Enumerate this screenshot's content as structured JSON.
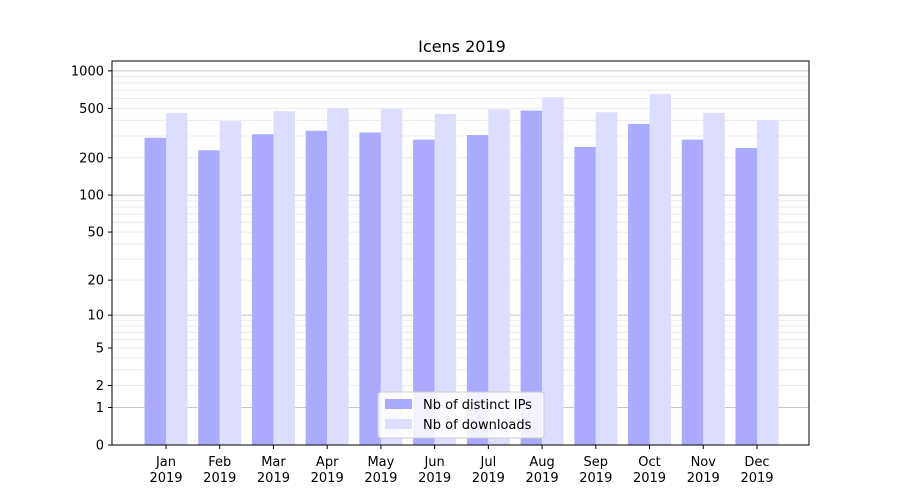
{
  "chart_data": {
    "type": "bar",
    "title": "Icens 2019",
    "xlabel": "",
    "ylabel": "",
    "yscale": "log1p",
    "ylim": [
      0,
      1200
    ],
    "yticks": [
      0,
      1,
      2,
      5,
      10,
      20,
      50,
      100,
      200,
      500,
      1000
    ],
    "grid": true,
    "legend_position": "bottom-center",
    "categories": [
      "Jan 2019",
      "Feb 2019",
      "Mar 2019",
      "Apr 2019",
      "May 2019",
      "Jun 2019",
      "Jul 2019",
      "Aug 2019",
      "Sep 2019",
      "Oct 2019",
      "Nov 2019",
      "Dec 2019"
    ],
    "series": [
      {
        "name": "Nb of distinct IPs",
        "color": "#aaaaff",
        "values": [
          290,
          230,
          310,
          330,
          320,
          280,
          305,
          480,
          245,
          375,
          280,
          240
        ]
      },
      {
        "name": "Nb of downloads",
        "color": "#ddddff",
        "values": [
          460,
          395,
          475,
          500,
          495,
          450,
          490,
          615,
          465,
          650,
          460,
          400
        ]
      }
    ]
  }
}
